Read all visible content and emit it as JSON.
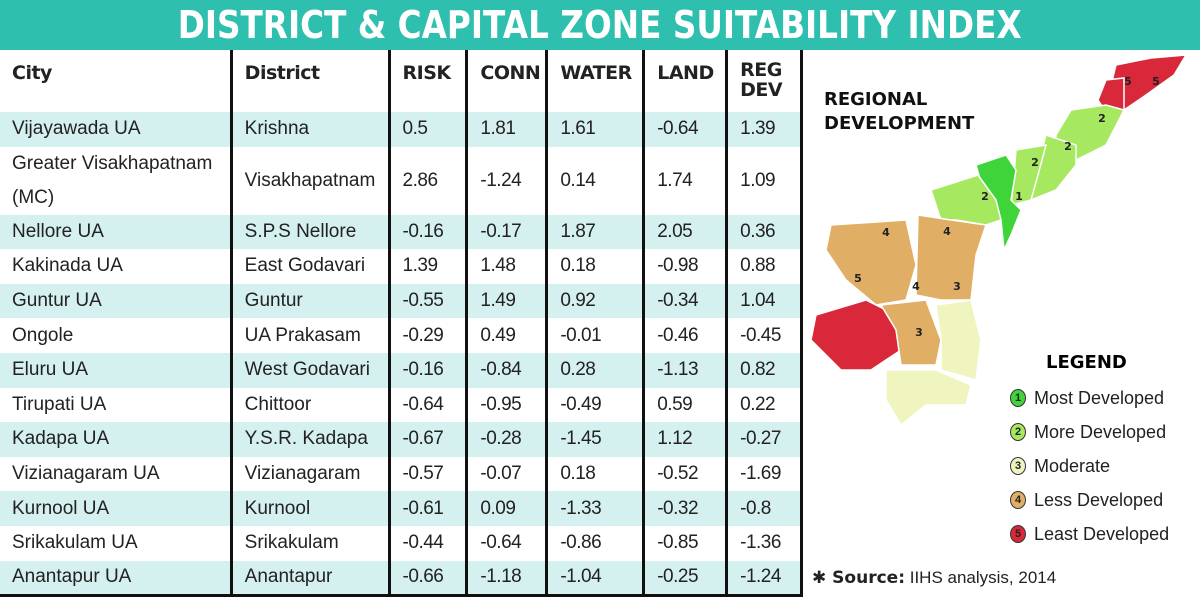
{
  "title": "DISTRICT & CAPITAL ZONE SUITABILITY INDEX",
  "table": {
    "headers": [
      "City",
      "District",
      "RISK",
      "CONN",
      "WATER",
      "LAND",
      "REG DEV"
    ],
    "rows": [
      [
        "Vijayawada UA",
        "Krishna",
        "0.5",
        "1.81",
        "1.61",
        "-0.64",
        "1.39"
      ],
      [
        "Greater Visakhapatnam (MC)",
        "Visakhapatnam",
        "2.86",
        "-1.24",
        "0.14",
        "1.74",
        "1.09"
      ],
      [
        "Nellore UA",
        "S.P.S Nellore",
        "-0.16",
        "-0.17",
        "1.87",
        "2.05",
        "0.36"
      ],
      [
        "Kakinada UA",
        "East Godavari",
        "1.39",
        "1.48",
        "0.18",
        "-0.98",
        "0.88"
      ],
      [
        "Guntur UA",
        "Guntur",
        "-0.55",
        "1.49",
        "0.92",
        "-0.34",
        "1.04"
      ],
      [
        "Ongole",
        "UA Prakasam",
        "-0.29",
        "0.49",
        "-0.01",
        "-0.46",
        "-0.45"
      ],
      [
        "Eluru UA",
        "West Godavari",
        "-0.16",
        "-0.84",
        "0.28",
        "-1.13",
        "0.82"
      ],
      [
        "Tirupati UA",
        "Chittoor",
        "-0.64",
        "-0.95",
        "-0.49",
        "0.59",
        "0.22"
      ],
      [
        "Kadapa UA",
        "Y.S.R. Kadapa",
        "-0.67",
        "-0.28",
        "-1.45",
        "1.12",
        "-0.27"
      ],
      [
        "Vizianagaram UA",
        "Vizianagaram",
        "-0.57",
        "-0.07",
        "0.18",
        "-0.52",
        "-1.69"
      ],
      [
        "Kurnool UA",
        "Kurnool",
        "-0.61",
        "0.09",
        "-1.33",
        "-0.32",
        "-0.8"
      ],
      [
        "Srikakulam UA",
        "Srikakulam",
        "-0.44",
        "-0.64",
        "-0.86",
        "-0.85",
        "-1.36"
      ],
      [
        "Anantapur UA",
        "Anantapur",
        "-0.66",
        "-1.18",
        "-1.04",
        "-0.25",
        "-1.24"
      ]
    ]
  },
  "map": {
    "title_line1": "REGIONAL",
    "title_line2": "DEVELOPMENT",
    "legend_title": "LEGEND",
    "legend": [
      {
        "n": "1",
        "label": "Most Developed",
        "color": "#3ed43a"
      },
      {
        "n": "2",
        "label": "More Developed",
        "color": "#a6e860"
      },
      {
        "n": "3",
        "label": "Moderate",
        "color": "#f0f5c0"
      },
      {
        "n": "4",
        "label": "Less Developed",
        "color": "#e0ae64"
      },
      {
        "n": "5",
        "label": "Least Developed",
        "color": "#d8283a"
      }
    ]
  },
  "source": {
    "label": "Source:",
    "text": "IIHS analysis, 2014"
  }
}
